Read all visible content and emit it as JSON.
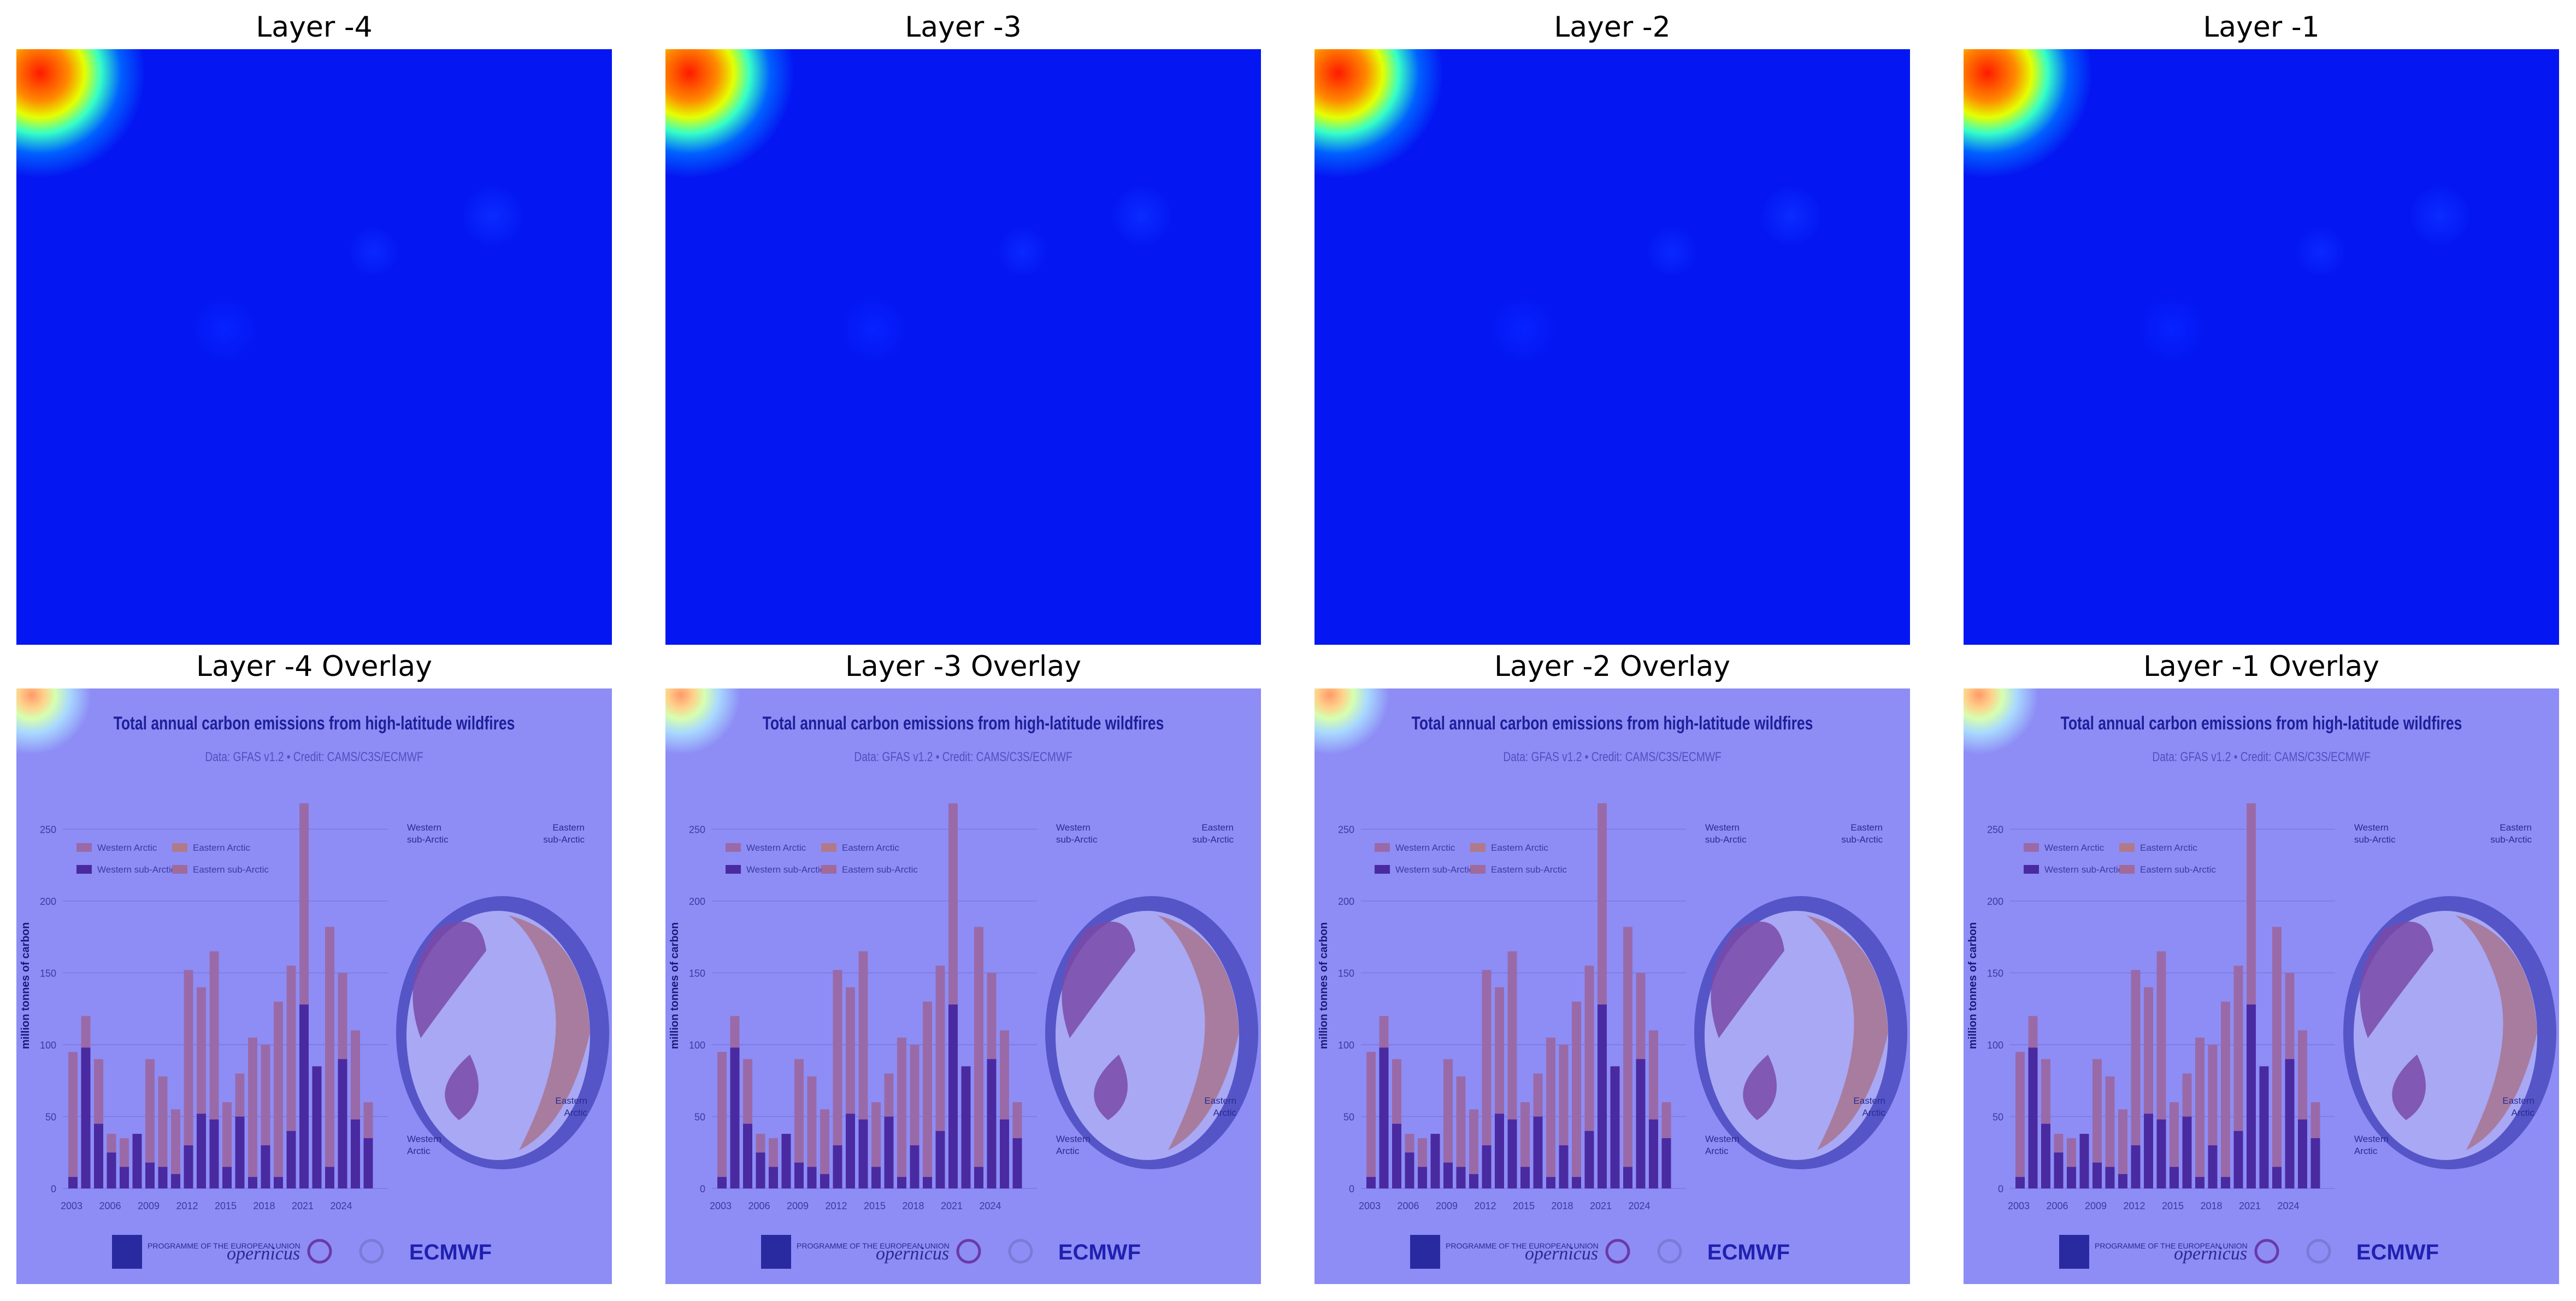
{
  "panels": [
    {
      "title": "Layer -4"
    },
    {
      "title": "Layer -3"
    },
    {
      "title": "Layer -2"
    },
    {
      "title": "Layer -1"
    }
  ],
  "overlays": [
    {
      "title": "Layer -4 Overlay"
    },
    {
      "title": "Layer -3 Overlay"
    },
    {
      "title": "Layer -2 Overlay"
    },
    {
      "title": "Layer -1 Overlay"
    }
  ],
  "infographic": {
    "title": "Total annual carbon emissions from high-latitude wildfires",
    "subtitle": "Data: GFAS v1.2 • Credit: CAMS/C3S/ECMWF",
    "ylabel": "million tonnes of carbon",
    "yticks": [
      "0",
      "50",
      "100",
      "150",
      "200",
      "250"
    ],
    "xticks": [
      "2003",
      "2006",
      "2009",
      "2012",
      "2015",
      "2018",
      "2021",
      "2024"
    ],
    "legend": [
      "Western Arctic",
      "Western sub-Arctic",
      "Eastern Arctic",
      "Eastern sub-Arctic"
    ],
    "map_labels": [
      "Western sub-Arctic",
      "Eastern sub-Arctic",
      "Eastern Arctic",
      "Western Arctic"
    ],
    "footer": [
      "PROGRAMME OF THE EUROPEAN UNION",
      "opernicus",
      "ECMWF"
    ]
  },
  "colors": {
    "heat_base": "#0416f2",
    "overlay_base": "#8d8df5",
    "bar_dark": "#4a2aa0",
    "bar_light": "#9a6aa8"
  }
}
